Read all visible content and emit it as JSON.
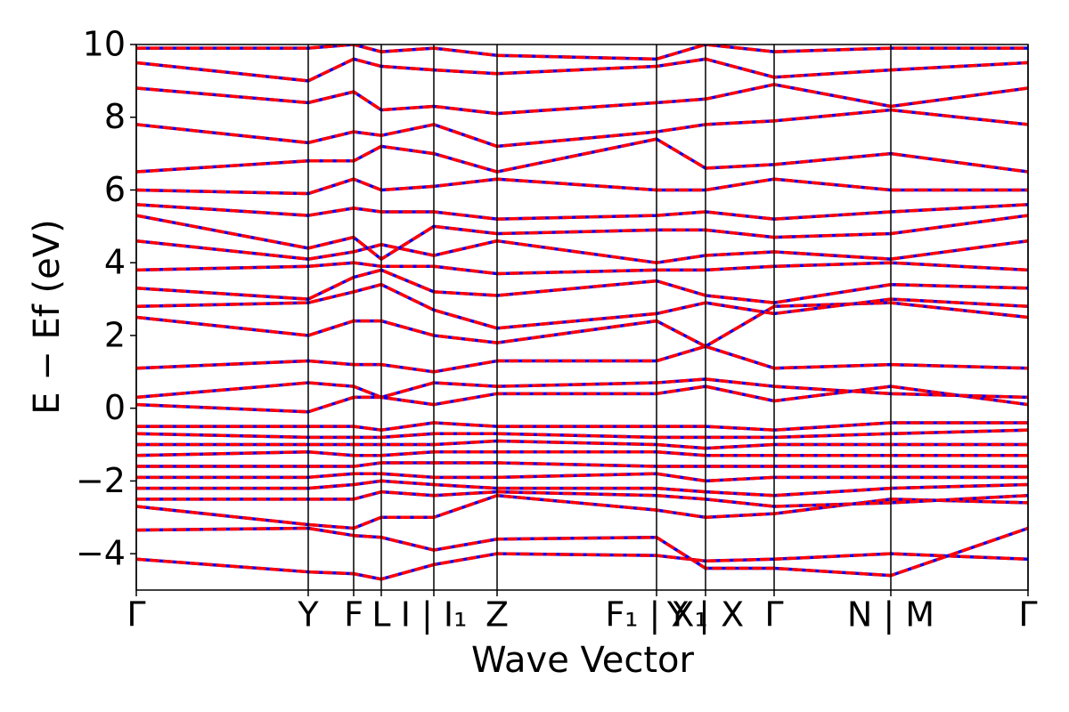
{
  "chart_data": {
    "type": "line",
    "x_label": "Wave Vector",
    "y_label": "E − Ef (eV)",
    "xlim": [
      0,
      1.001
    ],
    "ylim": [
      -5,
      10
    ],
    "yticks": [
      {
        "value": -4,
        "label": "−4"
      },
      {
        "value": -2,
        "label": "−2"
      },
      0,
      2,
      4,
      6,
      8,
      10
    ],
    "xticks": [
      {
        "value": 0,
        "label": "Γ"
      },
      {
        "value": 0.193,
        "label": "Y"
      },
      {
        "value": 0.244,
        "label": "F"
      },
      {
        "value": 0.275,
        "label": "L"
      },
      {
        "value": 0.334,
        "label": "I | I₁"
      },
      {
        "value": 0.405,
        "label": "Z"
      },
      {
        "value": 0.584,
        "label": "F₁ | X₁"
      },
      {
        "value": 0.639,
        "label": "Y | X"
      },
      {
        "value": 0.716,
        "label": "Γ"
      },
      {
        "value": 0.847,
        "label": "N | M"
      },
      {
        "value": 1.001,
        "label": "Γ"
      }
    ],
    "color": "#ff0000",
    "dash_color": "#0000ff",
    "x": [
      0,
      0.193,
      0.244,
      0.275,
      0.334,
      0.405,
      0.584,
      0.639,
      0.716,
      0.847,
      1.001
    ],
    "series": [
      {
        "values": [
          -4.15,
          -4.5,
          -4.55,
          -4.7,
          -4.3,
          -4.0,
          -4.05,
          -4.2,
          -4.15,
          -4.0,
          -4.15
        ]
      },
      {
        "values": [
          -3.35,
          -3.3,
          -3.5,
          -3.55,
          -3.9,
          -3.6,
          -3.55,
          -4.4,
          -4.4,
          -4.6,
          -3.3
        ]
      },
      {
        "values": [
          -2.7,
          -3.2,
          -3.3,
          -3.0,
          -3.0,
          -2.4,
          -2.8,
          -3.0,
          -2.9,
          -2.5,
          -2.6
        ]
      },
      {
        "values": [
          -2.5,
          -2.5,
          -2.5,
          -2.3,
          -2.4,
          -2.3,
          -2.4,
          -2.5,
          -2.7,
          -2.6,
          -2.4
        ]
      },
      {
        "values": [
          -2.2,
          -2.2,
          -2.1,
          -2.0,
          -2.1,
          -2.2,
          -2.2,
          -2.3,
          -2.4,
          -2.2,
          -2.1
        ]
      },
      {
        "values": [
          -1.9,
          -1.9,
          -1.8,
          -1.8,
          -1.9,
          -1.9,
          -1.8,
          -2.0,
          -1.9,
          -1.9,
          -1.9
        ]
      },
      {
        "values": [
          -1.6,
          -1.6,
          -1.6,
          -1.5,
          -1.5,
          -1.5,
          -1.6,
          -1.6,
          -1.6,
          -1.6,
          -1.6
        ]
      },
      {
        "values": [
          -1.3,
          -1.2,
          -1.3,
          -1.3,
          -1.2,
          -1.2,
          -1.2,
          -1.3,
          -1.3,
          -1.3,
          -1.3
        ]
      },
      {
        "values": [
          -1.0,
          -1.0,
          -1.0,
          -1.0,
          -1.0,
          -0.9,
          -1.0,
          -1.1,
          -1.0,
          -1.0,
          -1.0
        ]
      },
      {
        "values": [
          -0.7,
          -0.8,
          -0.8,
          -0.8,
          -0.7,
          -0.7,
          -0.8,
          -0.8,
          -0.8,
          -0.7,
          -0.6
        ]
      },
      {
        "values": [
          -0.5,
          -0.5,
          -0.5,
          -0.6,
          -0.4,
          -0.5,
          -0.5,
          -0.5,
          -0.6,
          -0.4,
          -0.4
        ]
      },
      {
        "values": [
          0.1,
          -0.1,
          0.3,
          0.3,
          0.1,
          0.4,
          0.4,
          0.6,
          0.2,
          0.6,
          0.1
        ]
      },
      {
        "values": [
          0.3,
          0.7,
          0.6,
          0.3,
          0.7,
          0.6,
          0.7,
          0.8,
          0.6,
          0.4,
          0.3
        ]
      },
      {
        "values": [
          1.1,
          1.3,
          1.2,
          1.2,
          1.0,
          1.3,
          1.3,
          1.7,
          1.1,
          1.2,
          1.1
        ]
      },
      {
        "values": [
          2.5,
          2.0,
          2.4,
          2.4,
          2.0,
          1.8,
          2.4,
          1.7,
          2.8,
          2.9,
          2.5
        ]
      },
      {
        "values": [
          2.8,
          2.9,
          3.2,
          3.4,
          2.7,
          2.2,
          2.6,
          2.9,
          2.6,
          3.0,
          2.8
        ]
      },
      {
        "values": [
          3.3,
          3.0,
          3.6,
          3.8,
          3.2,
          3.1,
          3.5,
          3.1,
          2.9,
          3.4,
          3.3
        ]
      },
      {
        "values": [
          3.8,
          3.9,
          4.0,
          3.9,
          3.9,
          3.7,
          3.8,
          3.8,
          3.9,
          4.0,
          3.8
        ]
      },
      {
        "values": [
          4.6,
          4.1,
          4.3,
          4.5,
          4.2,
          4.6,
          4.0,
          4.2,
          4.3,
          4.1,
          4.6
        ]
      },
      {
        "values": [
          5.3,
          4.4,
          4.7,
          4.1,
          5.0,
          4.8,
          4.9,
          4.9,
          4.7,
          4.8,
          5.3
        ]
      },
      {
        "values": [
          5.6,
          5.3,
          5.5,
          5.4,
          5.4,
          5.2,
          5.3,
          5.4,
          5.2,
          5.4,
          5.6
        ]
      },
      {
        "values": [
          6.0,
          5.9,
          6.3,
          6.0,
          6.1,
          6.3,
          6.0,
          6.0,
          6.3,
          6.0,
          6.0
        ]
      },
      {
        "values": [
          6.5,
          6.8,
          6.8,
          7.2,
          7.0,
          6.5,
          7.4,
          6.6,
          6.7,
          7.0,
          6.5
        ]
      },
      {
        "values": [
          7.8,
          7.3,
          7.6,
          7.5,
          7.8,
          7.2,
          7.6,
          7.8,
          7.9,
          8.2,
          7.8
        ]
      },
      {
        "values": [
          8.8,
          8.4,
          8.7,
          8.2,
          8.3,
          8.1,
          8.4,
          8.5,
          8.9,
          8.3,
          8.8
        ]
      },
      {
        "values": [
          9.5,
          9.0,
          9.6,
          9.4,
          9.3,
          9.2,
          9.4,
          9.6,
          9.1,
          9.3,
          9.5
        ]
      },
      {
        "values": [
          9.9,
          9.9,
          10,
          9.8,
          9.9,
          9.7,
          9.6,
          10,
          9.8,
          9.9,
          9.9
        ]
      }
    ]
  }
}
